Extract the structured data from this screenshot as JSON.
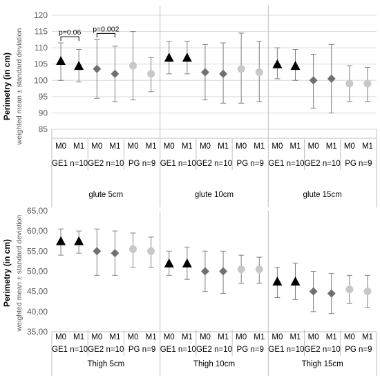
{
  "colors": {
    "GE1": "#000000",
    "GE2": "#707070",
    "PG": "#c8c8c8"
  },
  "chart_data": [
    {
      "type": "scatter",
      "y_axis_title": "Perimetry (in cm)",
      "y_axis_subtitle": "weighted mean ± standard deviation",
      "ylim": [
        85,
        120
      ],
      "yticks": [
        "85",
        "90",
        "95",
        "100",
        "105",
        "110",
        "115",
        "120"
      ],
      "grid": true,
      "groups": [
        {
          "label": "glute 5cm",
          "subgroups": [
            {
              "label": "GE1 n=10",
              "marker": "triangle",
              "color_key": "GE1",
              "points": [
                {
                  "x": "M0",
                  "mean": 106,
                  "low": 100,
                  "high": 111.5
                },
                {
                  "x": "M1",
                  "mean": 104.5,
                  "low": 99.5,
                  "high": 109.5
                }
              ]
            },
            {
              "label": "GE2 n=10",
              "marker": "diamond",
              "color_key": "GE2",
              "points": [
                {
                  "x": "M0",
                  "mean": 103.5,
                  "low": 94.5,
                  "high": 112.5
                },
                {
                  "x": "M1",
                  "mean": 102,
                  "low": 93.5,
                  "high": 110.5
                }
              ]
            },
            {
              "label": "PG n=9",
              "marker": "circle",
              "color_key": "PG",
              "points": [
                {
                  "x": "M0",
                  "mean": 104.5,
                  "low": 94,
                  "high": 115
                },
                {
                  "x": "M1",
                  "mean": 102,
                  "low": 96.5,
                  "high": 107
                }
              ]
            }
          ],
          "annotations": [
            {
              "text": "p=0.06",
              "subgroup": 0
            },
            {
              "text": "p=0.002",
              "subgroup": 1
            }
          ]
        },
        {
          "label": "glute 10cm",
          "subgroups": [
            {
              "label": "GE1 n=10",
              "marker": "triangle",
              "color_key": "GE1",
              "points": [
                {
                  "x": "M0",
                  "mean": 107,
                  "low": 102,
                  "high": 112
                },
                {
                  "x": "M1",
                  "mean": 107,
                  "low": 102,
                  "high": 112
                }
              ]
            },
            {
              "label": "GE2 n=10",
              "marker": "diamond",
              "color_key": "GE2",
              "points": [
                {
                  "x": "M0",
                  "mean": 102.5,
                  "low": 94,
                  "high": 111
                },
                {
                  "x": "M1",
                  "mean": 102,
                  "low": 93,
                  "high": 111.5
                }
              ]
            },
            {
              "label": "PG n=9",
              "marker": "circle",
              "color_key": "PG",
              "points": [
                {
                  "x": "M0",
                  "mean": 103.5,
                  "low": 93,
                  "high": 114.5
                },
                {
                  "x": "M1",
                  "mean": 102.5,
                  "low": 93.5,
                  "high": 112
                }
              ]
            }
          ],
          "annotations": []
        },
        {
          "label": "glute 15cm",
          "subgroups": [
            {
              "label": "GE1 n=10",
              "marker": "triangle",
              "color_key": "GE1",
              "points": [
                {
                  "x": "M0",
                  "mean": 105,
                  "low": 100.5,
                  "high": 110
                },
                {
                  "x": "M1",
                  "mean": 104.5,
                  "low": 100,
                  "high": 109.5
                }
              ]
            },
            {
              "label": "GE2 n=10",
              "marker": "diamond",
              "color_key": "GE2",
              "points": [
                {
                  "x": "M0",
                  "mean": 100,
                  "low": 91.5,
                  "high": 108
                },
                {
                  "x": "M1",
                  "mean": 100.5,
                  "low": 90,
                  "high": 111
                }
              ]
            },
            {
              "label": "PG n=9",
              "marker": "circle",
              "color_key": "PG",
              "points": [
                {
                  "x": "M0",
                  "mean": 99,
                  "low": 93.5,
                  "high": 104.5
                },
                {
                  "x": "M1",
                  "mean": 99,
                  "low": 93.5,
                  "high": 104
                }
              ]
            }
          ],
          "annotations": []
        }
      ]
    },
    {
      "type": "scatter",
      "y_axis_title": "Perimetry (in cm)",
      "y_axis_subtitle": "weighted mean ± standard deviation",
      "ylim": [
        35,
        65
      ],
      "yticks": [
        "35,00",
        "40,00",
        "45,00",
        "50,00",
        "55,00",
        "60,00",
        "65,00"
      ],
      "grid": false,
      "groups": [
        {
          "label": "Thigh 5cm",
          "subgroups": [
            {
              "label": "GE1 n=10",
              "marker": "triangle",
              "color_key": "GE1",
              "points": [
                {
                  "x": "M0",
                  "mean": 57.5,
                  "low": 54,
                  "high": 60.5
                },
                {
                  "x": "M1",
                  "mean": 57.5,
                  "low": 54.5,
                  "high": 60
                }
              ]
            },
            {
              "label": "GE2 n=10",
              "marker": "diamond",
              "color_key": "GE2",
              "points": [
                {
                  "x": "M0",
                  "mean": 55,
                  "low": 49,
                  "high": 60.5
                },
                {
                  "x": "M1",
                  "mean": 54.5,
                  "low": 49,
                  "high": 60
                }
              ]
            },
            {
              "label": "PG n=9",
              "marker": "circle",
              "color_key": "PG",
              "points": [
                {
                  "x": "M0",
                  "mean": 55.5,
                  "low": 51,
                  "high": 59.5
                },
                {
                  "x": "M1",
                  "mean": 55,
                  "low": 51,
                  "high": 58.5
                }
              ]
            }
          ],
          "annotations": []
        },
        {
          "label": "Thigh 10cm",
          "subgroups": [
            {
              "label": "GE1 n=10",
              "marker": "triangle",
              "color_key": "GE1",
              "points": [
                {
                  "x": "M0",
                  "mean": 52,
                  "low": 49,
                  "high": 55
                },
                {
                  "x": "M1",
                  "mean": 52,
                  "low": 48,
                  "high": 56
                }
              ]
            },
            {
              "label": "GE2 n=10",
              "marker": "diamond",
              "color_key": "GE2",
              "points": [
                {
                  "x": "M0",
                  "mean": 50,
                  "low": 45,
                  "high": 55
                },
                {
                  "x": "M1",
                  "mean": 50,
                  "low": 44.5,
                  "high": 55
                }
              ]
            },
            {
              "label": "PG n=9",
              "marker": "circle",
              "color_key": "PG",
              "points": [
                {
                  "x": "M0",
                  "mean": 50.5,
                  "low": 47,
                  "high": 54
                },
                {
                  "x": "M1",
                  "mean": 50.5,
                  "low": 47,
                  "high": 53.5
                }
              ]
            }
          ],
          "annotations": []
        },
        {
          "label": "Thigh 15cm",
          "subgroups": [
            {
              "label": "GE1 n=10",
              "marker": "triangle",
              "color_key": "GE1",
              "points": [
                {
                  "x": "M0",
                  "mean": 47.5,
                  "low": 43.5,
                  "high": 51
                },
                {
                  "x": "M1",
                  "mean": 47.5,
                  "low": 43,
                  "high": 52
                }
              ]
            },
            {
              "label": "GE2 n=10",
              "marker": "diamond",
              "color_key": "GE2",
              "points": [
                {
                  "x": "M0",
                  "mean": 45,
                  "low": 40,
                  "high": 50
                },
                {
                  "x": "M1",
                  "mean": 44.5,
                  "low": 39.5,
                  "high": 49.5
                }
              ]
            },
            {
              "label": "PG n=9",
              "marker": "circle",
              "color_key": "PG",
              "points": [
                {
                  "x": "M0",
                  "mean": 45.5,
                  "low": 42,
                  "high": 49
                },
                {
                  "x": "M1",
                  "mean": 45,
                  "low": 41,
                  "high": 49
                }
              ]
            }
          ],
          "annotations": []
        }
      ]
    }
  ]
}
